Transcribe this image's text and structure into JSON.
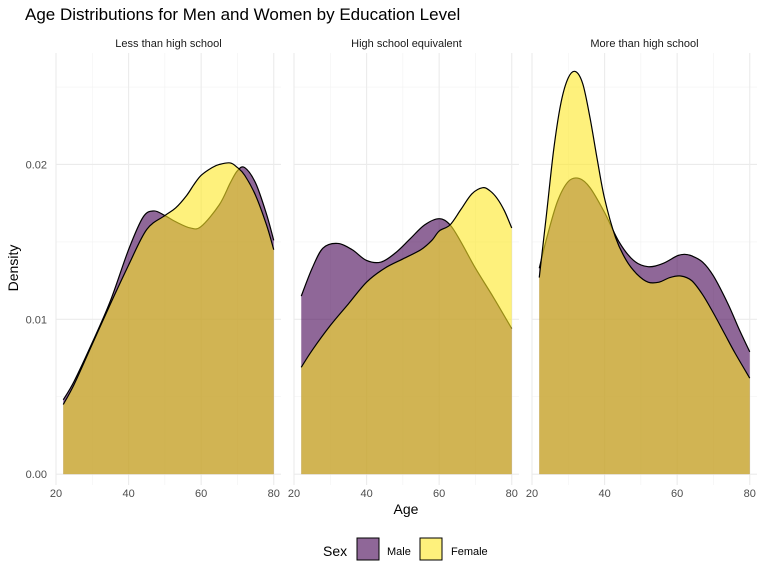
{
  "chart_data": {
    "type": "area",
    "title": "Age Distributions for Men and Women by Education Level",
    "xlabel": "Age",
    "ylabel": "Density",
    "xlim": [
      20,
      82
    ],
    "ylim": [
      -0.0007,
      0.0272
    ],
    "x_ticks": [
      20,
      40,
      60,
      80
    ],
    "y_ticks": [
      0.0,
      0.01,
      0.02
    ],
    "y_tick_labels": [
      "0.00",
      "0.01",
      "0.02"
    ],
    "grid": true,
    "legend": {
      "title": "Sex",
      "position": "bottom"
    },
    "colors": {
      "Male": "#440154",
      "Female": "#FDE725"
    },
    "panels": [
      {
        "label": "Less than high school",
        "series": [
          {
            "name": "Male",
            "x": [
              22,
              25,
              30,
              35,
              40,
              44,
              47,
              50,
              53,
              57,
              60,
              65,
              68,
              70,
              72,
              75,
              78,
              80
            ],
            "y": [
              0.0048,
              0.006,
              0.0085,
              0.0112,
              0.0145,
              0.0166,
              0.017,
              0.0167,
              0.0163,
              0.0159,
              0.016,
              0.0174,
              0.0188,
              0.0196,
              0.0198,
              0.0188,
              0.0168,
              0.0151
            ]
          },
          {
            "name": "Female",
            "x": [
              22,
              25,
              30,
              35,
              40,
              45,
              50,
              53,
              56,
              58,
              60,
              63,
              65,
              68,
              70,
              72,
              75,
              78,
              80
            ],
            "y": [
              0.0045,
              0.0058,
              0.0084,
              0.011,
              0.0135,
              0.0158,
              0.0167,
              0.0172,
              0.018,
              0.0187,
              0.0193,
              0.0198,
              0.02,
              0.0201,
              0.0198,
              0.0193,
              0.018,
              0.0161,
              0.0145
            ]
          }
        ]
      },
      {
        "label": "High school equivalent",
        "series": [
          {
            "name": "Male",
            "x": [
              22,
              25,
              28,
              32,
              36,
              40,
              44,
              48,
              52,
              56,
              60,
              63,
              66,
              70,
              75,
              80
            ],
            "y": [
              0.0115,
              0.0133,
              0.0146,
              0.0149,
              0.0145,
              0.0138,
              0.0137,
              0.0143,
              0.0152,
              0.0161,
              0.0165,
              0.0161,
              0.015,
              0.0133,
              0.0114,
              0.0094
            ]
          },
          {
            "name": "Female",
            "x": [
              22,
              25,
              30,
              35,
              40,
              45,
              50,
              55,
              58,
              60,
              63,
              66,
              69,
              72,
              74,
              76,
              78,
              80
            ],
            "y": [
              0.0069,
              0.008,
              0.0096,
              0.011,
              0.0124,
              0.0133,
              0.0139,
              0.0145,
              0.0151,
              0.0157,
              0.0161,
              0.0171,
              0.0181,
              0.0185,
              0.0183,
              0.0178,
              0.017,
              0.0159
            ]
          }
        ]
      },
      {
        "label": "More than high school",
        "series": [
          {
            "name": "Male",
            "x": [
              22,
              24,
              27,
              30,
              33,
              36,
              40,
              44,
              48,
              52,
              56,
              60,
              62,
              64,
              67,
              70,
              74,
              77,
              80
            ],
            "y": [
              0.0133,
              0.0152,
              0.0176,
              0.0189,
              0.0191,
              0.0185,
              0.0169,
              0.015,
              0.0138,
              0.0134,
              0.0136,
              0.0141,
              0.0142,
              0.0141,
              0.0137,
              0.0128,
              0.011,
              0.0094,
              0.0079
            ]
          },
          {
            "name": "Female",
            "x": [
              22,
              24,
              26,
              28,
              30,
              32,
              34,
              36,
              38,
              40,
              43,
              46,
              49,
              52,
              55,
              58,
              61,
              64,
              67,
              70,
              73,
              76,
              80
            ],
            "y": [
              0.0127,
              0.0168,
              0.021,
              0.024,
              0.0256,
              0.026,
              0.0252,
              0.023,
              0.0203,
              0.0178,
              0.0153,
              0.0138,
              0.0129,
              0.0124,
              0.0124,
              0.0127,
              0.0128,
              0.0125,
              0.0116,
              0.0104,
              0.0091,
              0.0078,
              0.0062
            ]
          }
        ]
      }
    ]
  }
}
